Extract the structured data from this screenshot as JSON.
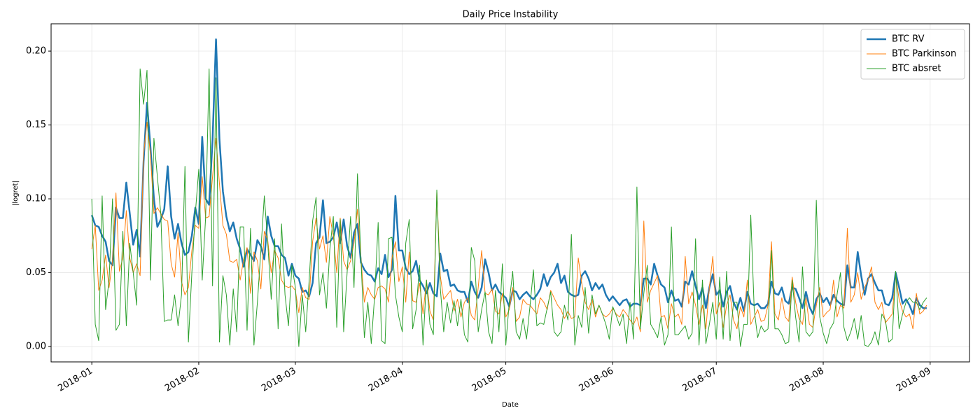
{
  "chart_data": {
    "type": "line",
    "title": "Daily Price Instability",
    "x_label": "Date",
    "y_label": "|logret|",
    "x": [
      0,
      1,
      2,
      3,
      4,
      5,
      6,
      7,
      8,
      9,
      10,
      11,
      12,
      13,
      14,
      15,
      16,
      17,
      18,
      19,
      20,
      21,
      22,
      23,
      24,
      25,
      26,
      27,
      28,
      29,
      30,
      31,
      32,
      33,
      34,
      35,
      36,
      37,
      38,
      39,
      40,
      41,
      42,
      43,
      44,
      45,
      46,
      47,
      48,
      49,
      50,
      51,
      52,
      53,
      54,
      55,
      56,
      57,
      58,
      59,
      60,
      61,
      62,
      63,
      64,
      65,
      66,
      67,
      68,
      69,
      70,
      71,
      72,
      73,
      74,
      75,
      76,
      77,
      78,
      79,
      80,
      81,
      82,
      83,
      84,
      85,
      86,
      87,
      88,
      89,
      90,
      91,
      92,
      93,
      94,
      95,
      96,
      97,
      98,
      99,
      100,
      101,
      102,
      103,
      104,
      105,
      106,
      107,
      108,
      109,
      110,
      111,
      112,
      113,
      114,
      115,
      116,
      117,
      118,
      119,
      120,
      121,
      122,
      123,
      124,
      125,
      126,
      127,
      128,
      129,
      130,
      131,
      132,
      133,
      134,
      135,
      136,
      137,
      138,
      139,
      140,
      141,
      142,
      143,
      144,
      145,
      146,
      147,
      148,
      149,
      150,
      151,
      152,
      153,
      154,
      155,
      156,
      157,
      158,
      159,
      160,
      161,
      162,
      163,
      164,
      165,
      166,
      167,
      168,
      169,
      170,
      171,
      172,
      173,
      174,
      175,
      176,
      177,
      178,
      179,
      180,
      181,
      182,
      183,
      184,
      185,
      186,
      187,
      188,
      189,
      190,
      191,
      192,
      193,
      194,
      195,
      196,
      197,
      198,
      199,
      200,
      201,
      202,
      203,
      204,
      205,
      206,
      207,
      208,
      209,
      210,
      211,
      212,
      213,
      214,
      215,
      216,
      217,
      218,
      219,
      220,
      221,
      222,
      223,
      224,
      225,
      226,
      227,
      228,
      229,
      230,
      231,
      232,
      233,
      234,
      235,
      236,
      237,
      238,
      239,
      240,
      241,
      242
    ],
    "xlim": [
      -11.8,
      254.4
    ],
    "xticks": [
      {
        "value": 0,
        "label": "2018-01"
      },
      {
        "value": 31,
        "label": "2018-02"
      },
      {
        "value": 59,
        "label": "2018-03"
      },
      {
        "value": 90,
        "label": "2018-04"
      },
      {
        "value": 120,
        "label": "2018-05"
      },
      {
        "value": 151,
        "label": "2018-06"
      },
      {
        "value": 181,
        "label": "2018-07"
      },
      {
        "value": 212,
        "label": "2018-08"
      },
      {
        "value": 243,
        "label": "2018-09"
      }
    ],
    "ylim": [
      -0.0104,
      0.2185
    ],
    "yticks": [
      {
        "value": 0,
        "label": "0.00"
      },
      {
        "value": 0.05,
        "label": "0.05"
      },
      {
        "value": 0.1,
        "label": "0.10"
      },
      {
        "value": 0.15,
        "label": "0.15"
      },
      {
        "value": 0.2,
        "label": "0.20"
      }
    ],
    "grid": true,
    "legend": "upper right",
    "series": [
      {
        "name": "BTC RV",
        "color": "#1f77b4",
        "linewidth": 2.5,
        "values": [
          0.089,
          0.082,
          0.081,
          0.075,
          0.071,
          0.058,
          0.055,
          0.094,
          0.087,
          0.087,
          0.111,
          0.09,
          0.069,
          0.079,
          0.061,
          0.125,
          0.165,
          0.135,
          0.1,
          0.081,
          0.086,
          0.093,
          0.122,
          0.088,
          0.073,
          0.083,
          0.07,
          0.062,
          0.064,
          0.075,
          0.094,
          0.083,
          0.142,
          0.1,
          0.096,
          0.14,
          0.208,
          0.14,
          0.105,
          0.088,
          0.078,
          0.084,
          0.073,
          0.066,
          0.054,
          0.066,
          0.062,
          0.058,
          0.072,
          0.068,
          0.059,
          0.088,
          0.075,
          0.068,
          0.068,
          0.062,
          0.06,
          0.048,
          0.056,
          0.048,
          0.046,
          0.037,
          0.038,
          0.034,
          0.043,
          0.07,
          0.074,
          0.099,
          0.07,
          0.071,
          0.074,
          0.084,
          0.07,
          0.086,
          0.068,
          0.06,
          0.077,
          0.083,
          0.057,
          0.052,
          0.049,
          0.048,
          0.044,
          0.053,
          0.049,
          0.062,
          0.047,
          0.052,
          0.102,
          0.065,
          0.065,
          0.053,
          0.049,
          0.051,
          0.058,
          0.045,
          0.041,
          0.036,
          0.043,
          0.036,
          0.034,
          0.063,
          0.051,
          0.052,
          0.041,
          0.042,
          0.038,
          0.037,
          0.037,
          0.03,
          0.044,
          0.037,
          0.033,
          0.04,
          0.059,
          0.05,
          0.038,
          0.042,
          0.037,
          0.035,
          0.033,
          0.027,
          0.038,
          0.037,
          0.032,
          0.035,
          0.037,
          0.034,
          0.032,
          0.035,
          0.039,
          0.049,
          0.041,
          0.047,
          0.05,
          0.056,
          0.043,
          0.048,
          0.037,
          0.035,
          0.034,
          0.035,
          0.048,
          0.051,
          0.046,
          0.038,
          0.043,
          0.039,
          0.042,
          0.035,
          0.031,
          0.034,
          0.031,
          0.028,
          0.031,
          0.032,
          0.027,
          0.029,
          0.029,
          0.028,
          0.046,
          0.046,
          0.042,
          0.056,
          0.048,
          0.042,
          0.04,
          0.03,
          0.038,
          0.031,
          0.032,
          0.027,
          0.044,
          0.042,
          0.051,
          0.041,
          0.032,
          0.04,
          0.026,
          0.04,
          0.049,
          0.035,
          0.038,
          0.027,
          0.037,
          0.041,
          0.03,
          0.025,
          0.033,
          0.024,
          0.037,
          0.029,
          0.028,
          0.029,
          0.026,
          0.026,
          0.029,
          0.044,
          0.036,
          0.035,
          0.04,
          0.031,
          0.029,
          0.04,
          0.039,
          0.033,
          0.026,
          0.037,
          0.027,
          0.022,
          0.032,
          0.036,
          0.03,
          0.033,
          0.028,
          0.035,
          0.031,
          0.029,
          0.028,
          0.055,
          0.04,
          0.04,
          0.064,
          0.048,
          0.035,
          0.046,
          0.049,
          0.043,
          0.038,
          0.038,
          0.029,
          0.028,
          0.033,
          0.05,
          0.04,
          0.029,
          0.032,
          0.028,
          0.022,
          0.033,
          0.028,
          0.026,
          0.026
        ]
      },
      {
        "name": "BTC Parkinson",
        "color": "#ff7f0e",
        "linewidth": 1,
        "values": [
          0.066,
          0.082,
          0.038,
          0.045,
          0.062,
          0.04,
          0.058,
          0.104,
          0.051,
          0.06,
          0.092,
          0.06,
          0.05,
          0.056,
          0.048,
          0.13,
          0.152,
          0.13,
          0.09,
          0.094,
          0.09,
          0.086,
          0.085,
          0.056,
          0.047,
          0.077,
          0.044,
          0.035,
          0.04,
          0.065,
          0.082,
          0.08,
          0.115,
          0.087,
          0.088,
          0.115,
          0.141,
          0.11,
          0.082,
          0.076,
          0.058,
          0.057,
          0.059,
          0.045,
          0.059,
          0.067,
          0.036,
          0.064,
          0.058,
          0.039,
          0.078,
          0.072,
          0.05,
          0.065,
          0.06,
          0.045,
          0.041,
          0.04,
          0.041,
          0.038,
          0.023,
          0.04,
          0.033,
          0.032,
          0.071,
          0.087,
          0.066,
          0.075,
          0.057,
          0.088,
          0.075,
          0.05,
          0.087,
          0.058,
          0.052,
          0.058,
          0.07,
          0.093,
          0.06,
          0.03,
          0.04,
          0.035,
          0.032,
          0.04,
          0.041,
          0.039,
          0.03,
          0.06,
          0.071,
          0.044,
          0.054,
          0.03,
          0.064,
          0.031,
          0.03,
          0.043,
          0.022,
          0.045,
          0.024,
          0.018,
          0.105,
          0.048,
          0.032,
          0.035,
          0.038,
          0.024,
          0.032,
          0.02,
          0.03,
          0.033,
          0.021,
          0.018,
          0.04,
          0.065,
          0.036,
          0.035,
          0.039,
          0.024,
          0.022,
          0.036,
          0.02,
          0.025,
          0.04,
          0.017,
          0.02,
          0.032,
          0.029,
          0.028,
          0.025,
          0.022,
          0.033,
          0.03,
          0.025,
          0.038,
          0.033,
          0.028,
          0.025,
          0.019,
          0.024,
          0.019,
          0.02,
          0.06,
          0.043,
          0.03,
          0.025,
          0.032,
          0.02,
          0.028,
          0.022,
          0.02,
          0.022,
          0.026,
          0.022,
          0.02,
          0.025,
          0.022,
          0.018,
          0.015,
          0.02,
          0.01,
          0.085,
          0.03,
          0.038,
          0.043,
          0.048,
          0.02,
          0.021,
          0.012,
          0.029,
          0.02,
          0.022,
          0.015,
          0.061,
          0.029,
          0.037,
          0.028,
          0.015,
          0.028,
          0.012,
          0.04,
          0.061,
          0.022,
          0.03,
          0.013,
          0.028,
          0.035,
          0.018,
          0.012,
          0.027,
          0.02,
          0.045,
          0.015,
          0.02,
          0.025,
          0.017,
          0.018,
          0.028,
          0.071,
          0.022,
          0.018,
          0.033,
          0.02,
          0.017,
          0.047,
          0.03,
          0.019,
          0.015,
          0.033,
          0.015,
          0.013,
          0.028,
          0.04,
          0.02,
          0.023,
          0.025,
          0.045,
          0.02,
          0.028,
          0.026,
          0.08,
          0.03,
          0.035,
          0.05,
          0.032,
          0.04,
          0.045,
          0.054,
          0.03,
          0.025,
          0.03,
          0.016,
          0.019,
          0.022,
          0.048,
          0.032,
          0.024,
          0.02,
          0.022,
          0.012,
          0.036,
          0.022,
          0.024,
          0.028
        ]
      },
      {
        "name": "BTC absret",
        "color": "#2ca02c",
        "linewidth": 1,
        "values": [
          0.1,
          0.015,
          0.004,
          0.102,
          0.025,
          0.045,
          0.1,
          0.011,
          0.015,
          0.078,
          0.014,
          0.07,
          0.05,
          0.028,
          0.188,
          0.164,
          0.187,
          0.045,
          0.141,
          0.115,
          0.09,
          0.017,
          0.018,
          0.018,
          0.035,
          0.014,
          0.035,
          0.122,
          0.003,
          0.05,
          0.09,
          0.12,
          0.045,
          0.088,
          0.188,
          0.041,
          0.182,
          0.003,
          0.048,
          0.035,
          0.001,
          0.039,
          0.01,
          0.081,
          0.081,
          0.011,
          0.08,
          0.001,
          0.03,
          0.065,
          0.102,
          0.07,
          0.032,
          0.073,
          0.012,
          0.083,
          0.035,
          0.014,
          0.055,
          0.04,
          0.0,
          0.035,
          0.01,
          0.045,
          0.085,
          0.101,
          0.035,
          0.05,
          0.026,
          0.066,
          0.088,
          0.013,
          0.086,
          0.01,
          0.05,
          0.088,
          0.04,
          0.117,
          0.06,
          0.006,
          0.03,
          0.002,
          0.035,
          0.084,
          0.004,
          0.002,
          0.073,
          0.074,
          0.035,
          0.02,
          0.01,
          0.07,
          0.086,
          0.012,
          0.025,
          0.055,
          0.001,
          0.045,
          0.015,
          0.008,
          0.106,
          0.04,
          0.01,
          0.03,
          0.016,
          0.031,
          0.014,
          0.032,
          0.008,
          0.003,
          0.067,
          0.058,
          0.01,
          0.025,
          0.037,
          0.01,
          0.002,
          0.038,
          0.01,
          0.056,
          0.001,
          0.03,
          0.051,
          0.01,
          0.005,
          0.019,
          0.005,
          0.027,
          0.052,
          0.014,
          0.016,
          0.015,
          0.026,
          0.037,
          0.01,
          0.007,
          0.01,
          0.028,
          0.018,
          0.076,
          0.001,
          0.021,
          0.013,
          0.04,
          0.009,
          0.035,
          0.022,
          0.028,
          0.022,
          0.015,
          0.005,
          0.027,
          0.021,
          0.014,
          0.022,
          0.002,
          0.03,
          0.005,
          0.108,
          0.012,
          0.036,
          0.055,
          0.015,
          0.011,
          0.006,
          0.02,
          0.001,
          0.008,
          0.081,
          0.008,
          0.008,
          0.011,
          0.014,
          0.005,
          0.009,
          0.073,
          0.001,
          0.045,
          0.002,
          0.015,
          0.03,
          0.005,
          0.047,
          0.005,
          0.051,
          0.004,
          0.03,
          0.03,
          0.0,
          0.015,
          0.015,
          0.089,
          0.025,
          0.006,
          0.014,
          0.01,
          0.012,
          0.065,
          0.012,
          0.012,
          0.008,
          0.002,
          0.003,
          0.045,
          0.02,
          0.003,
          0.054,
          0.01,
          0.007,
          0.01,
          0.099,
          0.02,
          0.009,
          0.002,
          0.012,
          0.016,
          0.035,
          0.05,
          0.013,
          0.004,
          0.01,
          0.019,
          0.005,
          0.021,
          0.001,
          0.0,
          0.003,
          0.01,
          0.001,
          0.022,
          0.018,
          0.003,
          0.005,
          0.051,
          0.012,
          0.022,
          0.03,
          0.033,
          0.03,
          0.03,
          0.025,
          0.03,
          0.033
        ]
      }
    ]
  }
}
